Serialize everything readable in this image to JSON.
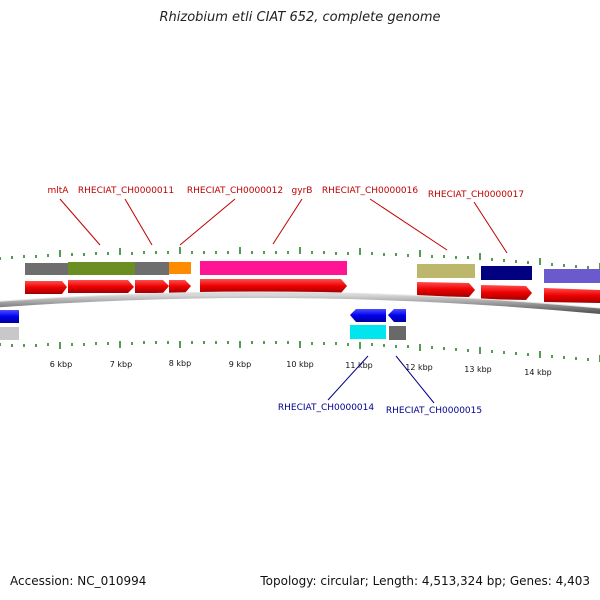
{
  "header": {
    "title": "Rhizobium etli CIAT 652, complete genome"
  },
  "footer": {
    "accession": "Accession: NC_010994",
    "summary": "Topology: circular; Length: 4,513,324 bp; Genes: 4,403"
  },
  "labels": {
    "mlta": "mltA",
    "ch11": "RHECIAT_CH0000011",
    "ch12": "RHECIAT_CH0000012",
    "gyrb": "gyrB",
    "ch16": "RHECIAT_CH0000016",
    "ch17": "RHECIAT_CH0000017",
    "ch14": "RHECIAT_CH0000014",
    "ch15": "RHECIAT_CH0000015"
  },
  "ticks": [
    "6 kbp",
    "7 kbp",
    "8 kbp",
    "9 kbp",
    "10 kbp",
    "11 kbp",
    "12 kbp",
    "13 kbp",
    "14 kbp"
  ],
  "colors": {
    "cds": "#ee0000",
    "forward_label": "#c00000",
    "reverse_label": "#00008b",
    "tick": "#1a7a1a",
    "backbone": "#8a8a8a"
  }
}
